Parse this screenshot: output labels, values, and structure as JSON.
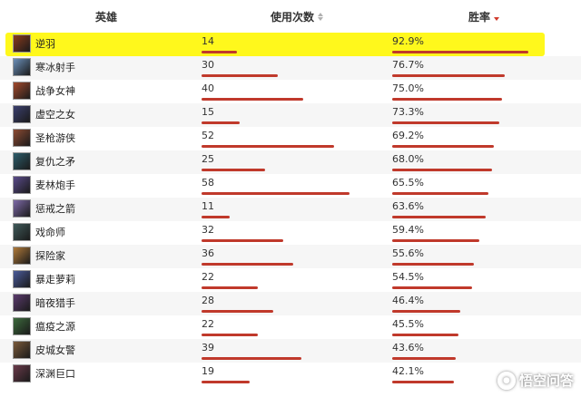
{
  "header": {
    "hero_label": "英雄",
    "uses_label": "使用次数",
    "winrate_label": "胜率"
  },
  "colors": {
    "bar": "#c0392b",
    "highlight": "#fff81c",
    "sort_active": "#d0392b"
  },
  "max_uses": 58,
  "rows": [
    {
      "name": "逆羽",
      "uses": "14",
      "winrate": "92.9%",
      "avatar_color": "#8a3b1e",
      "highlight": true
    },
    {
      "name": "寒冰射手",
      "uses": "30",
      "winrate": "76.7%",
      "avatar_color": "#6b8fb8"
    },
    {
      "name": "战争女神",
      "uses": "40",
      "winrate": "75.0%",
      "avatar_color": "#a34a2c"
    },
    {
      "name": "虚空之女",
      "uses": "15",
      "winrate": "73.3%",
      "avatar_color": "#3b3f6e"
    },
    {
      "name": "圣枪游侠",
      "uses": "52",
      "winrate": "69.2%",
      "avatar_color": "#8c4b33"
    },
    {
      "name": "复仇之矛",
      "uses": "25",
      "winrate": "68.0%",
      "avatar_color": "#2d5d6b"
    },
    {
      "name": "麦林炮手",
      "uses": "58",
      "winrate": "65.5%",
      "avatar_color": "#5a4b8a"
    },
    {
      "name": "惩戒之箭",
      "uses": "11",
      "winrate": "63.6%",
      "avatar_color": "#7e6aa8"
    },
    {
      "name": "戏命师",
      "uses": "32",
      "winrate": "59.4%",
      "avatar_color": "#3f5a5a"
    },
    {
      "name": "探险家",
      "uses": "36",
      "winrate": "55.6%",
      "avatar_color": "#b07a3a"
    },
    {
      "name": "暴走萝莉",
      "uses": "22",
      "winrate": "54.5%",
      "avatar_color": "#4a5b9a"
    },
    {
      "name": "暗夜猎手",
      "uses": "28",
      "winrate": "46.4%",
      "avatar_color": "#5b3b6e"
    },
    {
      "name": "瘟疫之源",
      "uses": "22",
      "winrate": "45.5%",
      "avatar_color": "#3c6a3c"
    },
    {
      "name": "皮城女警",
      "uses": "39",
      "winrate": "43.6%",
      "avatar_color": "#7a5a3a"
    },
    {
      "name": "深渊巨口",
      "uses": "19",
      "winrate": "42.1%",
      "avatar_color": "#6a3a4a"
    }
  ],
  "watermark": {
    "text": "悟空问答",
    "icon": "chat-bubble-icon"
  }
}
